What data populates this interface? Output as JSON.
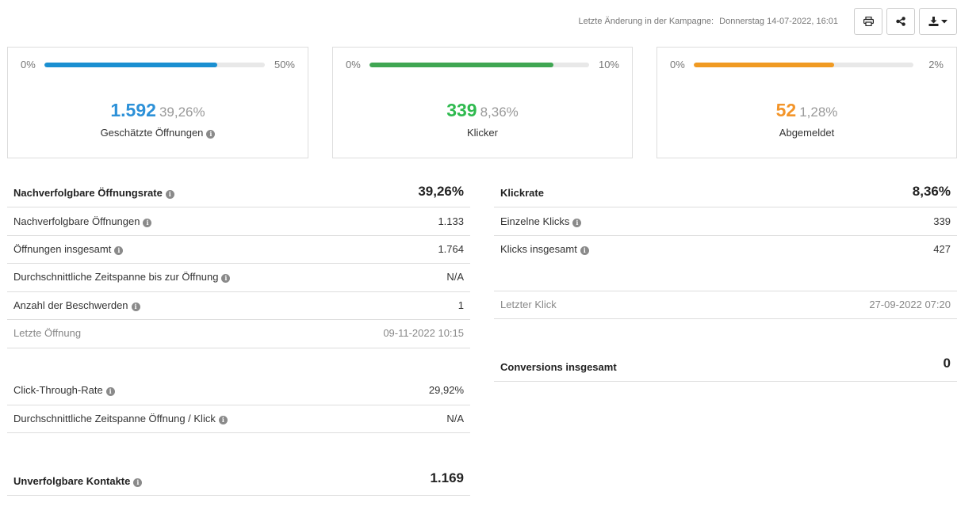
{
  "header": {
    "last_change_label": "Letzte Änderung in der Kampagne:",
    "last_change_value": "Donnerstag 14-07-2022, 16:01",
    "print_icon": "print-icon",
    "share_icon": "share-icon",
    "download_icon": "download-icon",
    "dropdown_icon": "caret-down-icon"
  },
  "cards": [
    {
      "min": "0%",
      "max": "50%",
      "fill_fraction": 0.785,
      "color": "#1a8fd1",
      "number": "1.592",
      "percent": "39,26%",
      "caption": "Geschätzte Öffnungen",
      "info": true
    },
    {
      "min": "0%",
      "max": "10%",
      "fill_fraction": 0.836,
      "color": "#3fa652",
      "number": "339",
      "percent": "8,36%",
      "caption": "Klicker",
      "info": false
    },
    {
      "min": "0%",
      "max": "2%",
      "fill_fraction": 0.64,
      "color": "#f09a22",
      "number": "52",
      "percent": "1,28%",
      "caption": "Abgemeldet",
      "info": false
    }
  ],
  "number_colors": [
    "#2d91d8",
    "#2fba4f",
    "#f3952a"
  ],
  "left_table": {
    "open_rate": {
      "label": "Nachverfolgbare Öffnungsrate",
      "value": "39,26%"
    },
    "rows": [
      {
        "label": "Nachverfolgbare Öffnungen",
        "value": "1.133"
      },
      {
        "label": "Öffnungen insgesamt",
        "value": "1.764"
      },
      {
        "label": "Durchschnittliche Zeitspanne bis zur Öffnung",
        "value": "N/A"
      },
      {
        "label": "Anzahl der Beschwerden",
        "value": "1"
      }
    ],
    "last_open": {
      "label": "Letzte Öffnung",
      "value": "09-11-2022 10:15"
    },
    "ctr": {
      "label": "Click-Through-Rate",
      "value": "29,92%"
    },
    "avg_open_click": {
      "label": "Durchschnittliche Zeitspanne Öffnung / Klick",
      "value": "N/A"
    },
    "untracked": {
      "label": "Unverfolgbare Kontakte",
      "value": "1.169"
    }
  },
  "right_table": {
    "click_rate": {
      "label": "Klickrate",
      "value": "8,36%"
    },
    "rows": [
      {
        "label": "Einzelne Klicks",
        "value": "339"
      },
      {
        "label": "Klicks insgesamt",
        "value": "427"
      }
    ],
    "last_click": {
      "label": "Letzter Klick",
      "value": "27-09-2022 07:20"
    },
    "conversions": {
      "label": "Conversions insgesamt",
      "value": "0"
    }
  }
}
